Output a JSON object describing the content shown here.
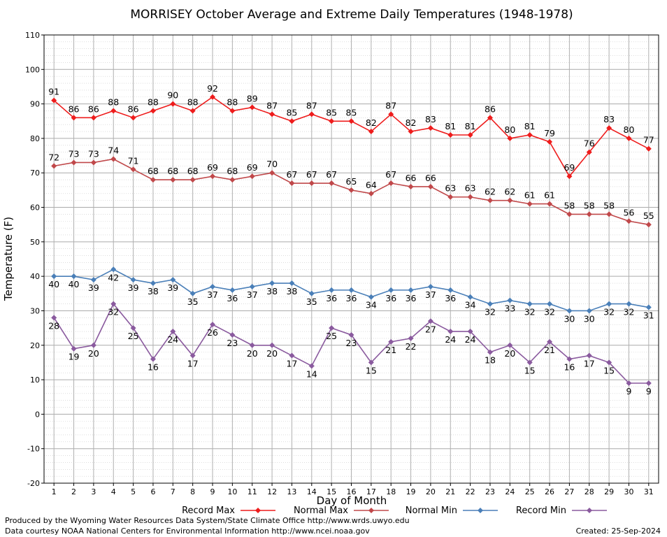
{
  "chart_data": {
    "type": "line",
    "title": "MORRISEY October Average and Extreme Daily Temperatures (1948-1978)",
    "xlabel": "Day of Month",
    "ylabel": "Temperature (F)",
    "ylim": [
      -20,
      110
    ],
    "yticks": [
      -20,
      -10,
      0,
      10,
      20,
      30,
      40,
      50,
      60,
      70,
      80,
      90,
      100,
      110
    ],
    "x": [
      1,
      2,
      3,
      4,
      5,
      6,
      7,
      8,
      9,
      10,
      11,
      12,
      13,
      14,
      15,
      16,
      17,
      18,
      19,
      20,
      21,
      22,
      23,
      24,
      25,
      26,
      27,
      28,
      29,
      30,
      31
    ],
    "grid": true,
    "legend_position": "bottom",
    "series": [
      {
        "name": "Record Max",
        "color": "#ee1c1c",
        "values": [
          91,
          86,
          86,
          88,
          86,
          88,
          90,
          88,
          92,
          88,
          89,
          87,
          85,
          87,
          85,
          85,
          82,
          87,
          82,
          83,
          81,
          81,
          86,
          80,
          81,
          79,
          69,
          76,
          83,
          80,
          77
        ]
      },
      {
        "name": "Normal Max",
        "color": "#c0484a",
        "values": [
          72,
          73,
          73,
          74,
          71,
          68,
          68,
          68,
          69,
          68,
          69,
          70,
          67,
          67,
          67,
          65,
          64,
          67,
          66,
          66,
          63,
          63,
          62,
          62,
          61,
          61,
          58,
          58,
          58,
          56,
          55
        ]
      },
      {
        "name": "Normal Min",
        "color": "#4a7fb8",
        "values": [
          40,
          40,
          39,
          42,
          39,
          38,
          39,
          35,
          37,
          36,
          37,
          38,
          38,
          35,
          36,
          36,
          34,
          36,
          36,
          37,
          36,
          34,
          32,
          33,
          32,
          32,
          30,
          30,
          32,
          32,
          31
        ]
      },
      {
        "name": "Record Min",
        "color": "#8a5a9e",
        "values": [
          28,
          19,
          20,
          32,
          25,
          16,
          24,
          17,
          26,
          23,
          20,
          20,
          17,
          14,
          25,
          23,
          15,
          21,
          22,
          27,
          24,
          24,
          18,
          20,
          15,
          21,
          16,
          17,
          15,
          9,
          9
        ]
      }
    ]
  },
  "footer": {
    "produced_by": "Produced by the Wyoming Water Resources Data System/State Climate Office http://www.wrds.uwyo.edu",
    "courtesy": "Data courtesy NOAA National Centers for Environmental Information http://www.ncei.noaa.gov",
    "created": "Created:  25-Sep-2024"
  }
}
